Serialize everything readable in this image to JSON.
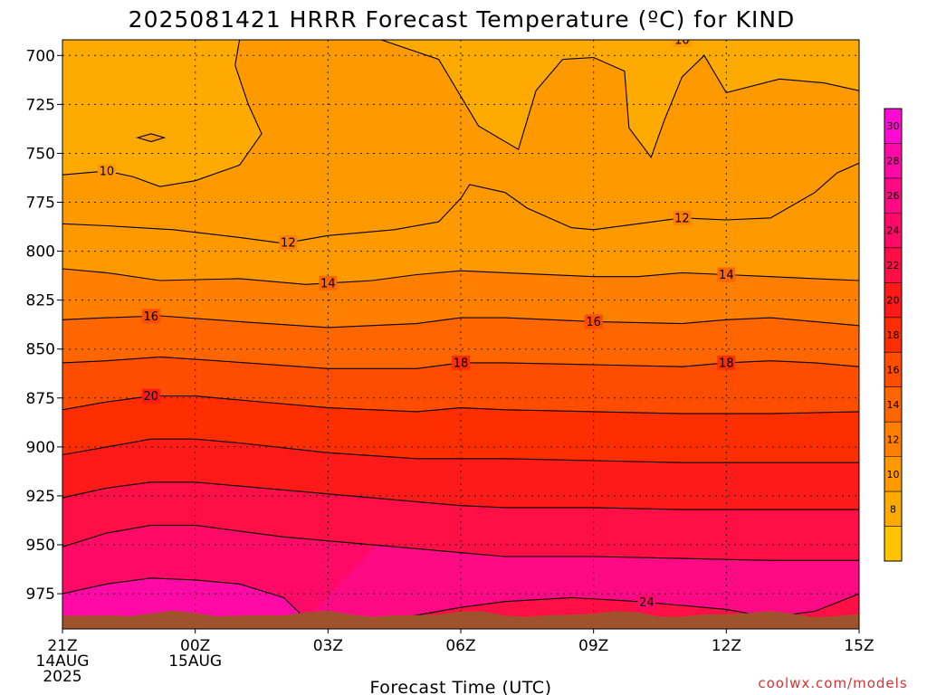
{
  "chart_data": {
    "type": "heatmap",
    "title": "2025081421 HRRR Forecast Temperature (ºC) for KIND",
    "xlabel": "Forecast Time (UTC)",
    "credit": "coolwx.com/models",
    "x_ticks": [
      {
        "hour": 0,
        "label": "21Z",
        "sub1": "14AUG",
        "sub2": "2025"
      },
      {
        "hour": 3,
        "label": "00Z",
        "sub1": "15AUG",
        "sub2": ""
      },
      {
        "hour": 6,
        "label": "03Z",
        "sub1": "",
        "sub2": ""
      },
      {
        "hour": 9,
        "label": "06Z",
        "sub1": "",
        "sub2": ""
      },
      {
        "hour": 12,
        "label": "09Z",
        "sub1": "",
        "sub2": ""
      },
      {
        "hour": 15,
        "label": "12Z",
        "sub1": "",
        "sub2": ""
      },
      {
        "hour": 18,
        "label": "15Z",
        "sub1": "",
        "sub2": ""
      }
    ],
    "xlim": [
      0,
      18
    ],
    "ylim": [
      993,
      692
    ],
    "y_ticks": [
      700,
      725,
      750,
      775,
      800,
      825,
      850,
      875,
      900,
      925,
      950,
      975
    ],
    "grid": true,
    "colorbar": {
      "levels": [
        6,
        8,
        10,
        12,
        14,
        16,
        18,
        20,
        22,
        24,
        26,
        28,
        30,
        32
      ],
      "labels": [
        8,
        10,
        12,
        14,
        16,
        18,
        20,
        22,
        24,
        26,
        28,
        30
      ],
      "colors": [
        "#ffc300",
        "#ffaa00",
        "#ff9900",
        "#ff8000",
        "#ff6600",
        "#ff4d00",
        "#ff2e00",
        "#ff1a1a",
        "#ff0f45",
        "#ff0a66",
        "#ff0a85",
        "#ff0aa6",
        "#ff0ad2"
      ]
    },
    "isotherms": [
      {
        "value": 10,
        "label_x": [
          1.0,
          14.0
        ],
        "points": [
          [
            0,
            761
          ],
          [
            1,
            759
          ],
          [
            1.6,
            762
          ],
          [
            2.2,
            767
          ],
          [
            3,
            764
          ],
          [
            4,
            756
          ],
          [
            4.5,
            740
          ],
          [
            4.2,
            725
          ],
          [
            3.9,
            705
          ],
          [
            4.0,
            692
          ]
        ]
      },
      {
        "value": 10,
        "label_x": [],
        "points": [
          [
            7.2,
            692
          ],
          [
            8.5,
            702
          ],
          [
            9.4,
            736
          ],
          [
            10.3,
            748
          ],
          [
            10.7,
            718
          ],
          [
            11.3,
            702
          ],
          [
            12.0,
            701
          ],
          [
            12.7,
            708
          ],
          [
            12.8,
            737
          ],
          [
            13.3,
            752
          ],
          [
            13.6,
            733
          ],
          [
            14.0,
            711
          ],
          [
            14.5,
            700
          ],
          [
            15.0,
            719
          ],
          [
            16.2,
            712
          ],
          [
            17.2,
            714
          ],
          [
            18,
            718
          ]
        ]
      },
      {
        "value": 12,
        "label_x": [
          5.1,
          14.0
        ],
        "points": [
          [
            0,
            786
          ],
          [
            1,
            787
          ],
          [
            2.5,
            789
          ],
          [
            4,
            793
          ],
          [
            5,
            796
          ],
          [
            6,
            792
          ],
          [
            7.5,
            789
          ],
          [
            8.5,
            785
          ],
          [
            9,
            773
          ],
          [
            9.2,
            766
          ],
          [
            10,
            770
          ],
          [
            10.5,
            778
          ],
          [
            11.5,
            788
          ],
          [
            12,
            789
          ],
          [
            13,
            786
          ],
          [
            14,
            783
          ],
          [
            15,
            784
          ],
          [
            16,
            783
          ],
          [
            17,
            770
          ],
          [
            17.5,
            760
          ],
          [
            18,
            755
          ]
        ]
      },
      {
        "value": 14,
        "label_x": [
          6.0,
          15.0
        ],
        "points": [
          [
            0,
            809
          ],
          [
            1,
            811
          ],
          [
            2.2,
            815
          ],
          [
            4,
            814
          ],
          [
            5.5,
            817
          ],
          [
            7,
            815
          ],
          [
            8,
            812
          ],
          [
            9,
            810
          ],
          [
            10,
            811
          ],
          [
            12,
            813
          ],
          [
            13,
            813
          ],
          [
            14,
            811
          ],
          [
            15,
            812
          ],
          [
            16,
            813
          ],
          [
            17,
            814
          ],
          [
            18,
            815
          ]
        ]
      },
      {
        "value": 16,
        "label_x": [
          2.0,
          12.0
        ],
        "points": [
          [
            0,
            835
          ],
          [
            1,
            834
          ],
          [
            2.2,
            833
          ],
          [
            4,
            836
          ],
          [
            6,
            839
          ],
          [
            8,
            837
          ],
          [
            9,
            834
          ],
          [
            10,
            834
          ],
          [
            12,
            836
          ],
          [
            14,
            837
          ],
          [
            15,
            835
          ],
          [
            16,
            834
          ],
          [
            17,
            836
          ],
          [
            18,
            838
          ]
        ]
      },
      {
        "value": 18,
        "label_x": [
          9.0,
          15.0
        ],
        "points": [
          [
            0,
            857
          ],
          [
            1,
            856
          ],
          [
            2.2,
            854
          ],
          [
            3.5,
            856
          ],
          [
            6,
            860
          ],
          [
            8,
            860
          ],
          [
            9,
            857
          ],
          [
            10,
            857
          ],
          [
            12,
            858
          ],
          [
            14,
            859
          ],
          [
            15,
            857
          ],
          [
            16,
            856
          ],
          [
            17,
            857
          ],
          [
            18,
            859
          ]
        ]
      },
      {
        "value": 20,
        "label_x": [
          2.0
        ],
        "points": [
          [
            0,
            881
          ],
          [
            1,
            877
          ],
          [
            2,
            874
          ],
          [
            3,
            874
          ],
          [
            4,
            876
          ],
          [
            6,
            880
          ],
          [
            8,
            882
          ],
          [
            9,
            880
          ],
          [
            10,
            881
          ],
          [
            12,
            882
          ],
          [
            14,
            883
          ],
          [
            16,
            883
          ],
          [
            18,
            882
          ]
        ]
      },
      {
        "value": 22,
        "label_x": [],
        "points": [
          [
            0,
            904
          ],
          [
            1,
            900
          ],
          [
            2,
            896
          ],
          [
            3,
            896
          ],
          [
            4,
            898
          ],
          [
            6,
            903
          ],
          [
            8,
            906
          ],
          [
            9,
            906
          ],
          [
            10,
            906
          ],
          [
            12,
            907
          ],
          [
            14,
            908
          ],
          [
            16,
            908
          ],
          [
            18,
            908
          ]
        ]
      },
      {
        "value": 24,
        "label_x": [],
        "points": [
          [
            0,
            926
          ],
          [
            1,
            921
          ],
          [
            2,
            918
          ],
          [
            3,
            918
          ],
          [
            4,
            920
          ],
          [
            6,
            924
          ],
          [
            8,
            928
          ],
          [
            9,
            930
          ],
          [
            10,
            931
          ],
          [
            12,
            931
          ],
          [
            14,
            932
          ],
          [
            16,
            932
          ],
          [
            18,
            932
          ]
        ]
      },
      {
        "value": 24,
        "label_x": [
          13.2
        ],
        "points": [
          [
            7.5,
            988
          ],
          [
            9,
            982
          ],
          [
            10,
            979
          ],
          [
            11.5,
            977
          ],
          [
            13,
            979
          ],
          [
            14,
            981
          ],
          [
            15,
            983
          ],
          [
            16,
            987
          ],
          [
            17,
            984
          ],
          [
            18,
            975
          ]
        ]
      },
      {
        "value": 26,
        "label_x": [],
        "points": [
          [
            0,
            951
          ],
          [
            1,
            944
          ],
          [
            2,
            940
          ],
          [
            3,
            940
          ],
          [
            4,
            943
          ],
          [
            5,
            946
          ],
          [
            6,
            948
          ],
          [
            8,
            952
          ],
          [
            9,
            954
          ],
          [
            10,
            956
          ],
          [
            12,
            956
          ],
          [
            14,
            957
          ],
          [
            16,
            958
          ],
          [
            18,
            958
          ]
        ]
      },
      {
        "value": 28,
        "label_x": [],
        "points": [
          [
            0,
            975
          ],
          [
            1,
            970
          ],
          [
            2,
            967
          ],
          [
            3,
            968
          ],
          [
            4,
            970
          ],
          [
            5,
            977
          ],
          [
            5.5,
            988
          ]
        ]
      }
    ],
    "closed_contours": [
      {
        "value": 10,
        "points": [
          [
            1.7,
            742
          ],
          [
            2.0,
            744
          ],
          [
            2.3,
            742
          ],
          [
            2.0,
            740
          ]
        ]
      }
    ]
  }
}
